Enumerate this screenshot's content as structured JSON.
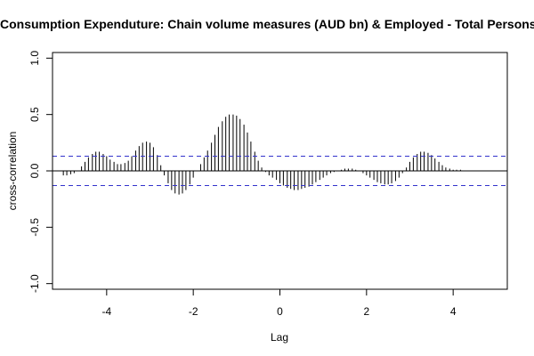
{
  "chart_data": {
    "type": "bar",
    "title": "Consumption Expenduture: Chain volume measures (AUD bn) & Employed - Total Persons",
    "xlabel": "Lag",
    "ylabel": "cross-correlation",
    "xlim": [
      -5.25,
      5.25
    ],
    "ylim": [
      -1.05,
      1.05
    ],
    "x_ticks": [
      -4,
      -2,
      0,
      2,
      4
    ],
    "x_tick_labels": [
      "-4",
      "-2",
      "0",
      "2",
      "4"
    ],
    "y_ticks": [
      -1.0,
      -0.5,
      0.0,
      0.5,
      1.0
    ],
    "y_tick_labels": [
      "-1.0",
      "-0.5",
      "0.0",
      "0.5",
      "1.0"
    ],
    "confidence_band": [
      -0.13,
      0.13
    ],
    "confidence_color": "#3333cc",
    "bar_color": "#000000",
    "grid": false,
    "x": [
      -5.0,
      -4.92,
      -4.83,
      -4.75,
      -4.67,
      -4.58,
      -4.5,
      -4.42,
      -4.33,
      -4.25,
      -4.17,
      -4.08,
      -4.0,
      -3.92,
      -3.83,
      -3.75,
      -3.67,
      -3.58,
      -3.5,
      -3.42,
      -3.33,
      -3.25,
      -3.17,
      -3.08,
      -3.0,
      -2.92,
      -2.83,
      -2.75,
      -2.67,
      -2.58,
      -2.5,
      -2.42,
      -2.33,
      -2.25,
      -2.17,
      -2.08,
      -2.0,
      -1.92,
      -1.83,
      -1.75,
      -1.67,
      -1.58,
      -1.5,
      -1.42,
      -1.33,
      -1.25,
      -1.17,
      -1.08,
      -1.0,
      -0.92,
      -0.83,
      -0.75,
      -0.67,
      -0.58,
      -0.5,
      -0.42,
      -0.33,
      -0.25,
      -0.17,
      -0.08,
      0.0,
      0.08,
      0.17,
      0.25,
      0.33,
      0.42,
      0.5,
      0.58,
      0.67,
      0.75,
      0.83,
      0.92,
      1.0,
      1.08,
      1.17,
      1.25,
      1.33,
      1.42,
      1.5,
      1.58,
      1.67,
      1.75,
      1.83,
      1.92,
      2.0,
      2.08,
      2.17,
      2.25,
      2.33,
      2.42,
      2.5,
      2.58,
      2.67,
      2.75,
      2.83,
      2.92,
      3.0,
      3.08,
      3.17,
      3.25,
      3.33,
      3.42,
      3.5,
      3.58,
      3.67,
      3.75,
      3.83,
      3.92,
      4.0,
      4.08,
      4.17,
      4.25,
      4.33,
      4.42,
      4.5,
      4.58,
      4.67,
      4.75,
      4.83,
      4.92,
      5.0
    ],
    "values": [
      -0.04,
      -0.04,
      -0.03,
      -0.02,
      0.0,
      0.04,
      0.08,
      0.12,
      0.15,
      0.17,
      0.17,
      0.15,
      0.13,
      0.1,
      0.08,
      0.06,
      0.06,
      0.07,
      0.09,
      0.13,
      0.18,
      0.22,
      0.25,
      0.26,
      0.25,
      0.21,
      0.14,
      0.05,
      -0.04,
      -0.11,
      -0.17,
      -0.2,
      -0.21,
      -0.2,
      -0.17,
      -0.12,
      -0.06,
      0.0,
      0.06,
      0.12,
      0.18,
      0.25,
      0.32,
      0.39,
      0.44,
      0.48,
      0.5,
      0.5,
      0.49,
      0.46,
      0.41,
      0.34,
      0.26,
      0.17,
      0.09,
      0.03,
      -0.01,
      -0.04,
      -0.06,
      -0.08,
      -0.11,
      -0.13,
      -0.15,
      -0.16,
      -0.17,
      -0.17,
      -0.16,
      -0.15,
      -0.14,
      -0.12,
      -0.1,
      -0.08,
      -0.06,
      -0.04,
      -0.02,
      -0.01,
      0.0,
      0.01,
      0.02,
      0.02,
      0.02,
      0.01,
      0.0,
      -0.02,
      -0.04,
      -0.06,
      -0.08,
      -0.1,
      -0.11,
      -0.12,
      -0.12,
      -0.11,
      -0.09,
      -0.06,
      -0.02,
      0.03,
      0.08,
      0.12,
      0.15,
      0.17,
      0.17,
      0.16,
      0.14,
      0.11,
      0.08,
      0.05,
      0.03,
      0.02,
      0.01,
      0.01,
      0.01,
      0.0,
      0.0,
      0.0,
      0.0,
      0.0,
      0.0,
      0.0,
      0.0,
      0.0,
      0.0
    ]
  }
}
